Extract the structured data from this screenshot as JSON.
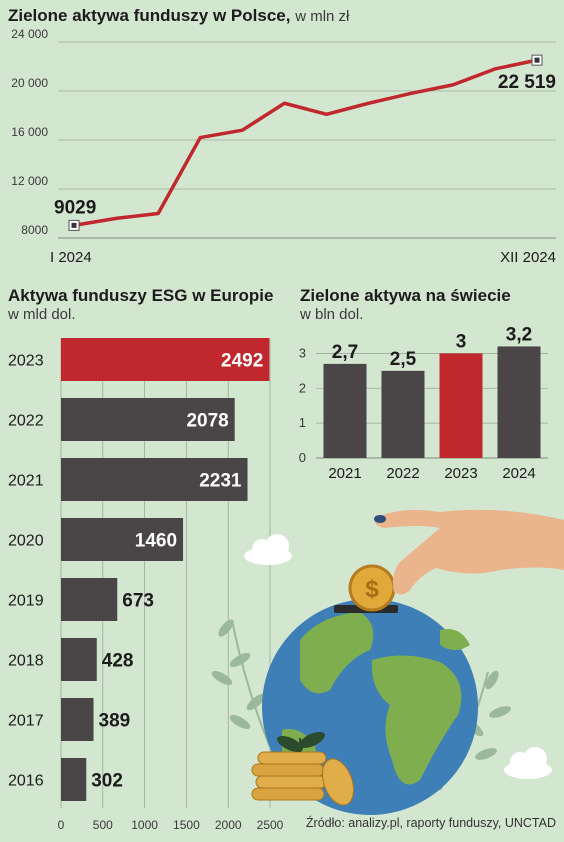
{
  "source": "Źródło: analizy.pl, raporty funduszy, UNCTAD",
  "chart_data": [
    {
      "type": "line",
      "title": "Zielone aktywa funduszy w Polsce,",
      "unit": "w mln zł",
      "x_start_label": "I 2024",
      "x_end_label": "XII 2024",
      "values": [
        9029,
        9600,
        10000,
        16200,
        16800,
        19000,
        18100,
        19000,
        19800,
        20500,
        21800,
        22519
      ],
      "start_label": "9029",
      "end_label": "22 519",
      "y_ticks": [
        "24 000",
        "20 000",
        "16 000",
        "12 000",
        "8000"
      ],
      "ylim": [
        8000,
        24000
      ],
      "grid": true,
      "line_color": "#c0282d"
    },
    {
      "type": "bar",
      "orientation": "horizontal",
      "title": "Aktywa funduszy ESG w Europie",
      "subtitle": "w mld dol.",
      "categories": [
        "2023",
        "2022",
        "2021",
        "2020",
        "2019",
        "2018",
        "2017",
        "2016"
      ],
      "values": [
        2492,
        2078,
        2231,
        1460,
        673,
        428,
        389,
        302
      ],
      "value_labels": [
        "2492",
        "2078",
        "2231",
        "1460",
        "673",
        "428",
        "389",
        "302"
      ],
      "highlight": "2023",
      "x_ticks": [
        "0",
        "500",
        "1000",
        "1500",
        "2000",
        "2500"
      ],
      "xlim": [
        0,
        2500
      ],
      "grid": true
    },
    {
      "type": "bar",
      "title": "Zielone aktywa na świecie",
      "subtitle": "w bln dol.",
      "categories": [
        "2021",
        "2022",
        "2023",
        "2024"
      ],
      "values": [
        2.7,
        2.5,
        3,
        3.2
      ],
      "value_labels": [
        "2,7",
        "2,5",
        "3",
        "3,2"
      ],
      "highlight": "2023",
      "y_ticks": [
        "3",
        "2",
        "1",
        "0"
      ],
      "ylim": [
        0,
        3.5
      ],
      "grid": true
    }
  ],
  "colors": {
    "background": "#d3e6cf",
    "bar": "#4a4547",
    "highlight": "#c0282d",
    "line": "#c0282d",
    "grid": "#9aaa97"
  }
}
